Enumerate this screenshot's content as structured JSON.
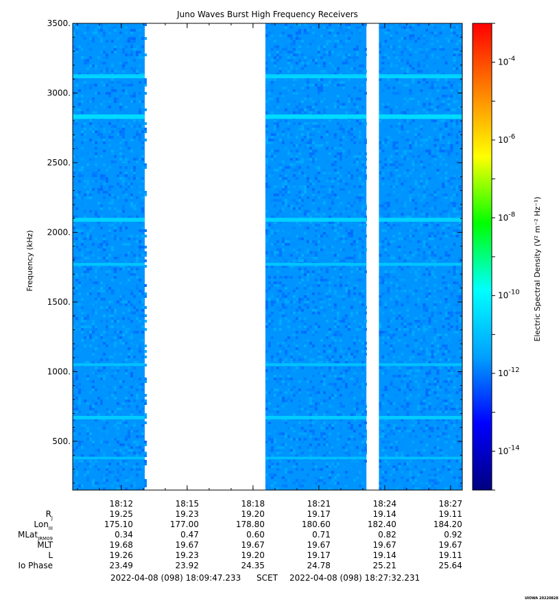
{
  "chart_data": {
    "type": "heatmap",
    "title": "Juno Waves Burst High Frequency Receivers",
    "ylabel": "Frequency (kHz)",
    "ylim": [
      150,
      3500
    ],
    "y_ticks": [
      "3500.",
      "3000.",
      "2500.",
      "2000.",
      "1500.",
      "1000.",
      "500."
    ],
    "y_tick_values": [
      3500,
      3000,
      2500,
      2000,
      1500,
      1000,
      500
    ],
    "xlim_minutes": [
      18.1631,
      18.4589
    ],
    "x_ticks": [
      "18:12",
      "18:15",
      "18:18",
      "18:21",
      "18:24",
      "18:27"
    ],
    "x_tick_values_hours": [
      18.2,
      18.25,
      18.3,
      18.35,
      18.4,
      18.45
    ],
    "data_intervals_hours": [
      {
        "start": 18.1631,
        "end": 18.2178
      },
      {
        "start": 18.3094,
        "end": 18.3861
      },
      {
        "start": 18.3956,
        "end": 18.4589
      }
    ],
    "emission_bands_khz": [
      {
        "freq": 3120,
        "intensity": 0.55
      },
      {
        "freq": 2830,
        "intensity": 0.7
      },
      {
        "freq": 2090,
        "intensity": 0.55
      },
      {
        "freq": 1770,
        "intensity": 0.25
      },
      {
        "freq": 1050,
        "intensity": 0.2
      },
      {
        "freq": 670,
        "intensity": 0.4
      },
      {
        "freq": 380,
        "intensity": 0.15
      }
    ],
    "background_log_density": -11.7,
    "colorbar": {
      "label": "Electric Spectral Density (V² m⁻² Hz⁻¹)",
      "min_log": -15,
      "max_log": -3,
      "ticks": [
        {
          "base": "10",
          "exp": "-4",
          "value": -4
        },
        {
          "base": "10",
          "exp": "-6",
          "value": -6
        },
        {
          "base": "10",
          "exp": "-8",
          "value": -8
        },
        {
          "base": "10",
          "exp": "-10",
          "value": -10
        },
        {
          "base": "10",
          "exp": "-12",
          "value": -12
        },
        {
          "base": "10",
          "exp": "-14",
          "value": -14
        }
      ],
      "colors": [
        "#000080",
        "#0000ff",
        "#00a0ff",
        "#00ffff",
        "#00ff00",
        "#ffff00",
        "#ff8000",
        "#ff0000"
      ]
    },
    "ephemeris": {
      "rows": [
        {
          "label": "R",
          "sub": "J",
          "values": [
            "19.25",
            "19.23",
            "19.20",
            "19.17",
            "19.14",
            "19.11"
          ]
        },
        {
          "label": "Lon",
          "sub": "III",
          "values": [
            "175.10",
            "177.00",
            "178.80",
            "180.60",
            "182.40",
            "184.20"
          ]
        },
        {
          "label": "MLat",
          "sub": "JRM09",
          "values": [
            "0.34",
            "0.47",
            "0.60",
            "0.71",
            "0.82",
            "0.92"
          ]
        },
        {
          "label": "MLT",
          "sub": "",
          "values": [
            "19.68",
            "19.67",
            "19.67",
            "19.67",
            "19.67",
            "19.67"
          ]
        },
        {
          "label": "L",
          "sub": "",
          "values": [
            "19.26",
            "19.23",
            "19.20",
            "19.17",
            "19.14",
            "19.11"
          ]
        },
        {
          "label": "Io Phase",
          "sub": "",
          "values": [
            "23.49",
            "23.92",
            "24.35",
            "24.78",
            "25.21",
            "25.64"
          ]
        }
      ]
    },
    "time_range": {
      "start": "2022-04-08 (098) 18:09:47.233",
      "frame": "SCET",
      "end": "2022-04-08 (098) 18:27:32.231"
    },
    "credit": "UIOWA 20220828"
  }
}
